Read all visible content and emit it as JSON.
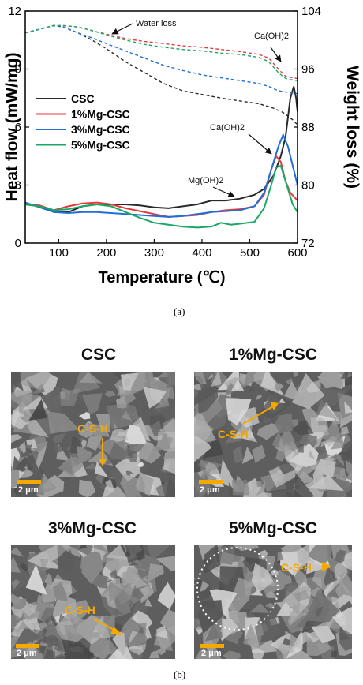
{
  "chart_data": {
    "type": "line",
    "xlabel": "Temperature (℃)",
    "ylabel": "Heat flow (mW/mg)",
    "y2label": "Weight loss (%)",
    "xlim": [
      30,
      600
    ],
    "ylim": [
      0,
      12
    ],
    "y2lim": [
      72,
      104
    ],
    "xticks": [
      "100",
      "200",
      "300",
      "400",
      "500",
      "600"
    ],
    "yticks": [
      "0",
      "3",
      "6",
      "9",
      "12"
    ],
    "y2ticks": [
      "72",
      "80",
      "88",
      "96",
      "104"
    ],
    "legend_position": "center-left",
    "annotations": [
      "Water loss",
      "Ca(OH)2",
      "Ca(OH)2",
      "Mg(OH)2"
    ],
    "series": [
      {
        "name": "CSC",
        "color": "#2a2a2a",
        "heat_flow": [
          [
            30,
            2.0
          ],
          [
            60,
            1.9
          ],
          [
            90,
            1.6
          ],
          [
            120,
            1.6
          ],
          [
            150,
            1.9
          ],
          [
            180,
            2.0
          ],
          [
            210,
            2.0
          ],
          [
            240,
            2.0
          ],
          [
            270,
            1.95
          ],
          [
            300,
            1.85
          ],
          [
            330,
            1.8
          ],
          [
            360,
            1.9
          ],
          [
            390,
            2.0
          ],
          [
            420,
            2.2
          ],
          [
            450,
            2.2
          ],
          [
            480,
            2.3
          ],
          [
            510,
            2.5
          ],
          [
            530,
            2.8
          ],
          [
            550,
            3.5
          ],
          [
            565,
            4.5
          ],
          [
            575,
            5.5
          ],
          [
            585,
            7.5
          ],
          [
            592,
            8.1
          ],
          [
            597,
            7.5
          ],
          [
            600,
            6.8
          ]
        ],
        "weight_loss": [
          [
            30,
            101
          ],
          [
            60,
            101.5
          ],
          [
            90,
            102
          ],
          [
            110,
            101.8
          ],
          [
            140,
            101
          ],
          [
            170,
            100
          ],
          [
            200,
            98.8
          ],
          [
            240,
            97
          ],
          [
            280,
            95.5
          ],
          [
            320,
            94
          ],
          [
            360,
            93
          ],
          [
            400,
            92.5
          ],
          [
            440,
            92
          ],
          [
            480,
            91.6
          ],
          [
            520,
            91.2
          ],
          [
            550,
            90.6
          ],
          [
            570,
            90
          ],
          [
            590,
            89
          ],
          [
            600,
            88.3
          ]
        ]
      },
      {
        "name": "1%Mg-CSC",
        "color": "#e8393b",
        "heat_flow": [
          [
            30,
            2.0
          ],
          [
            60,
            1.95
          ],
          [
            90,
            1.7
          ],
          [
            120,
            1.9
          ],
          [
            150,
            2.05
          ],
          [
            180,
            2.1
          ],
          [
            210,
            2.0
          ],
          [
            240,
            1.8
          ],
          [
            270,
            1.65
          ],
          [
            300,
            1.5
          ],
          [
            330,
            1.35
          ],
          [
            360,
            1.4
          ],
          [
            390,
            1.45
          ],
          [
            420,
            1.6
          ],
          [
            450,
            1.7
          ],
          [
            480,
            1.75
          ],
          [
            510,
            1.9
          ],
          [
            530,
            2.5
          ],
          [
            545,
            3.8
          ],
          [
            555,
            4.5
          ],
          [
            565,
            4.2
          ],
          [
            575,
            3.2
          ],
          [
            585,
            2.6
          ],
          [
            600,
            2.2
          ]
        ],
        "weight_loss": [
          [
            30,
            101
          ],
          [
            60,
            101.5
          ],
          [
            90,
            102
          ],
          [
            110,
            102
          ],
          [
            140,
            101.8
          ],
          [
            170,
            101.3
          ],
          [
            200,
            100.8
          ],
          [
            240,
            100.2
          ],
          [
            280,
            99.8
          ],
          [
            320,
            99.5
          ],
          [
            360,
            99.2
          ],
          [
            400,
            99
          ],
          [
            440,
            98.7
          ],
          [
            480,
            98.4
          ],
          [
            520,
            98
          ],
          [
            540,
            97.5
          ],
          [
            560,
            96
          ],
          [
            575,
            95
          ],
          [
            590,
            94.8
          ],
          [
            600,
            94.7
          ]
        ]
      },
      {
        "name": "3%Mg-CSC",
        "color": "#1f6fd6",
        "heat_flow": [
          [
            30,
            2.1
          ],
          [
            60,
            1.85
          ],
          [
            90,
            1.6
          ],
          [
            120,
            1.55
          ],
          [
            150,
            1.6
          ],
          [
            180,
            1.6
          ],
          [
            210,
            1.55
          ],
          [
            240,
            1.5
          ],
          [
            270,
            1.45
          ],
          [
            300,
            1.4
          ],
          [
            330,
            1.35
          ],
          [
            360,
            1.4
          ],
          [
            390,
            1.5
          ],
          [
            420,
            1.6
          ],
          [
            450,
            1.65
          ],
          [
            480,
            1.7
          ],
          [
            510,
            1.9
          ],
          [
            530,
            2.6
          ],
          [
            545,
            3.8
          ],
          [
            560,
            5.0
          ],
          [
            570,
            5.6
          ],
          [
            580,
            5.0
          ],
          [
            590,
            4.0
          ],
          [
            600,
            3.0
          ]
        ],
        "weight_loss": [
          [
            30,
            101
          ],
          [
            60,
            101.5
          ],
          [
            90,
            102
          ],
          [
            110,
            101.8
          ],
          [
            140,
            101
          ],
          [
            170,
            100.3
          ],
          [
            200,
            99.5
          ],
          [
            240,
            98.5
          ],
          [
            280,
            97.5
          ],
          [
            320,
            96.5
          ],
          [
            360,
            95.8
          ],
          [
            400,
            95.2
          ],
          [
            440,
            94.8
          ],
          [
            480,
            94.4
          ],
          [
            520,
            94
          ],
          [
            540,
            93.6
          ],
          [
            560,
            93
          ],
          [
            580,
            92.8
          ],
          [
            600,
            92.6
          ]
        ]
      },
      {
        "name": "5%Mg-CSC",
        "color": "#1aa865",
        "heat_flow": [
          [
            30,
            2.0
          ],
          [
            60,
            1.9
          ],
          [
            90,
            1.7
          ],
          [
            120,
            1.75
          ],
          [
            150,
            1.9
          ],
          [
            180,
            2.0
          ],
          [
            210,
            1.9
          ],
          [
            240,
            1.6
          ],
          [
            270,
            1.3
          ],
          [
            300,
            1.05
          ],
          [
            330,
            0.95
          ],
          [
            360,
            0.85
          ],
          [
            390,
            0.8
          ],
          [
            420,
            0.85
          ],
          [
            440,
            1.05
          ],
          [
            460,
            0.95
          ],
          [
            480,
            1.0
          ],
          [
            510,
            1.1
          ],
          [
            530,
            1.8
          ],
          [
            545,
            3.0
          ],
          [
            555,
            3.9
          ],
          [
            565,
            4.0
          ],
          [
            580,
            2.8
          ],
          [
            590,
            2.0
          ],
          [
            600,
            1.6
          ]
        ],
        "weight_loss": [
          [
            30,
            101
          ],
          [
            60,
            101.5
          ],
          [
            90,
            102
          ],
          [
            110,
            102
          ],
          [
            140,
            101.8
          ],
          [
            170,
            101.3
          ],
          [
            200,
            100.7
          ],
          [
            240,
            100
          ],
          [
            280,
            99.4
          ],
          [
            320,
            99
          ],
          [
            360,
            98.7
          ],
          [
            400,
            98.5
          ],
          [
            440,
            98.2
          ],
          [
            480,
            98
          ],
          [
            520,
            97.6
          ],
          [
            540,
            97
          ],
          [
            560,
            95.5
          ],
          [
            575,
            94.7
          ],
          [
            590,
            94.5
          ],
          [
            600,
            94.4
          ]
        ]
      }
    ]
  },
  "captions": {
    "a": "(a)",
    "b": "(b)"
  },
  "panels": [
    {
      "title": "CSC",
      "label": "C-S-H",
      "scale": "2 μm"
    },
    {
      "title": "1%Mg-CSC",
      "label": "C-S-H",
      "scale": "2 μm"
    },
    {
      "title": "3%Mg-CSC",
      "label": "C-S-H",
      "scale": "2 μm"
    },
    {
      "title": "5%Mg-CSC",
      "label": "C-S-H",
      "scale": "2 μm"
    }
  ],
  "colors": {
    "label": "#f5a800",
    "sem_bg": "#6d6d6d"
  }
}
